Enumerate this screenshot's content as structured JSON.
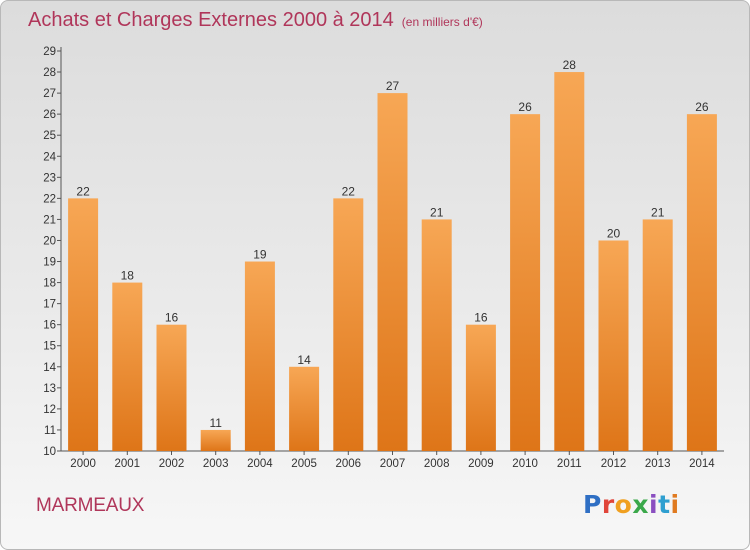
{
  "header": {
    "title": "Achats et Charges Externes 2000 à 2014",
    "subtitle": "(en milliers d'€)"
  },
  "footer": {
    "commune": "MARMEAUX",
    "logo_text": "Proxiti",
    "logo_colors": [
      "#2f6fc4",
      "#e0453a",
      "#f0a020",
      "#3aa84a",
      "#8a4fc0",
      "#2f9fd0",
      "#e07a20"
    ]
  },
  "colors": {
    "bar_light": "#f7a755",
    "bar_dark": "#de7518",
    "title": "#b0365a"
  },
  "chart_data": {
    "type": "bar",
    "title": "Achats et Charges Externes 2000 à 2014",
    "subtitle": "(en milliers d'€)",
    "categories": [
      "2000",
      "2001",
      "2002",
      "2003",
      "2004",
      "2005",
      "2006",
      "2007",
      "2008",
      "2009",
      "2010",
      "2011",
      "2012",
      "2013",
      "2014"
    ],
    "values": [
      22,
      18,
      16,
      11,
      19,
      14,
      22,
      27,
      21,
      16,
      26,
      28,
      20,
      21,
      26
    ],
    "ylim": [
      10,
      29
    ],
    "ytick_step": 1,
    "grid": false,
    "data_labels": true
  }
}
